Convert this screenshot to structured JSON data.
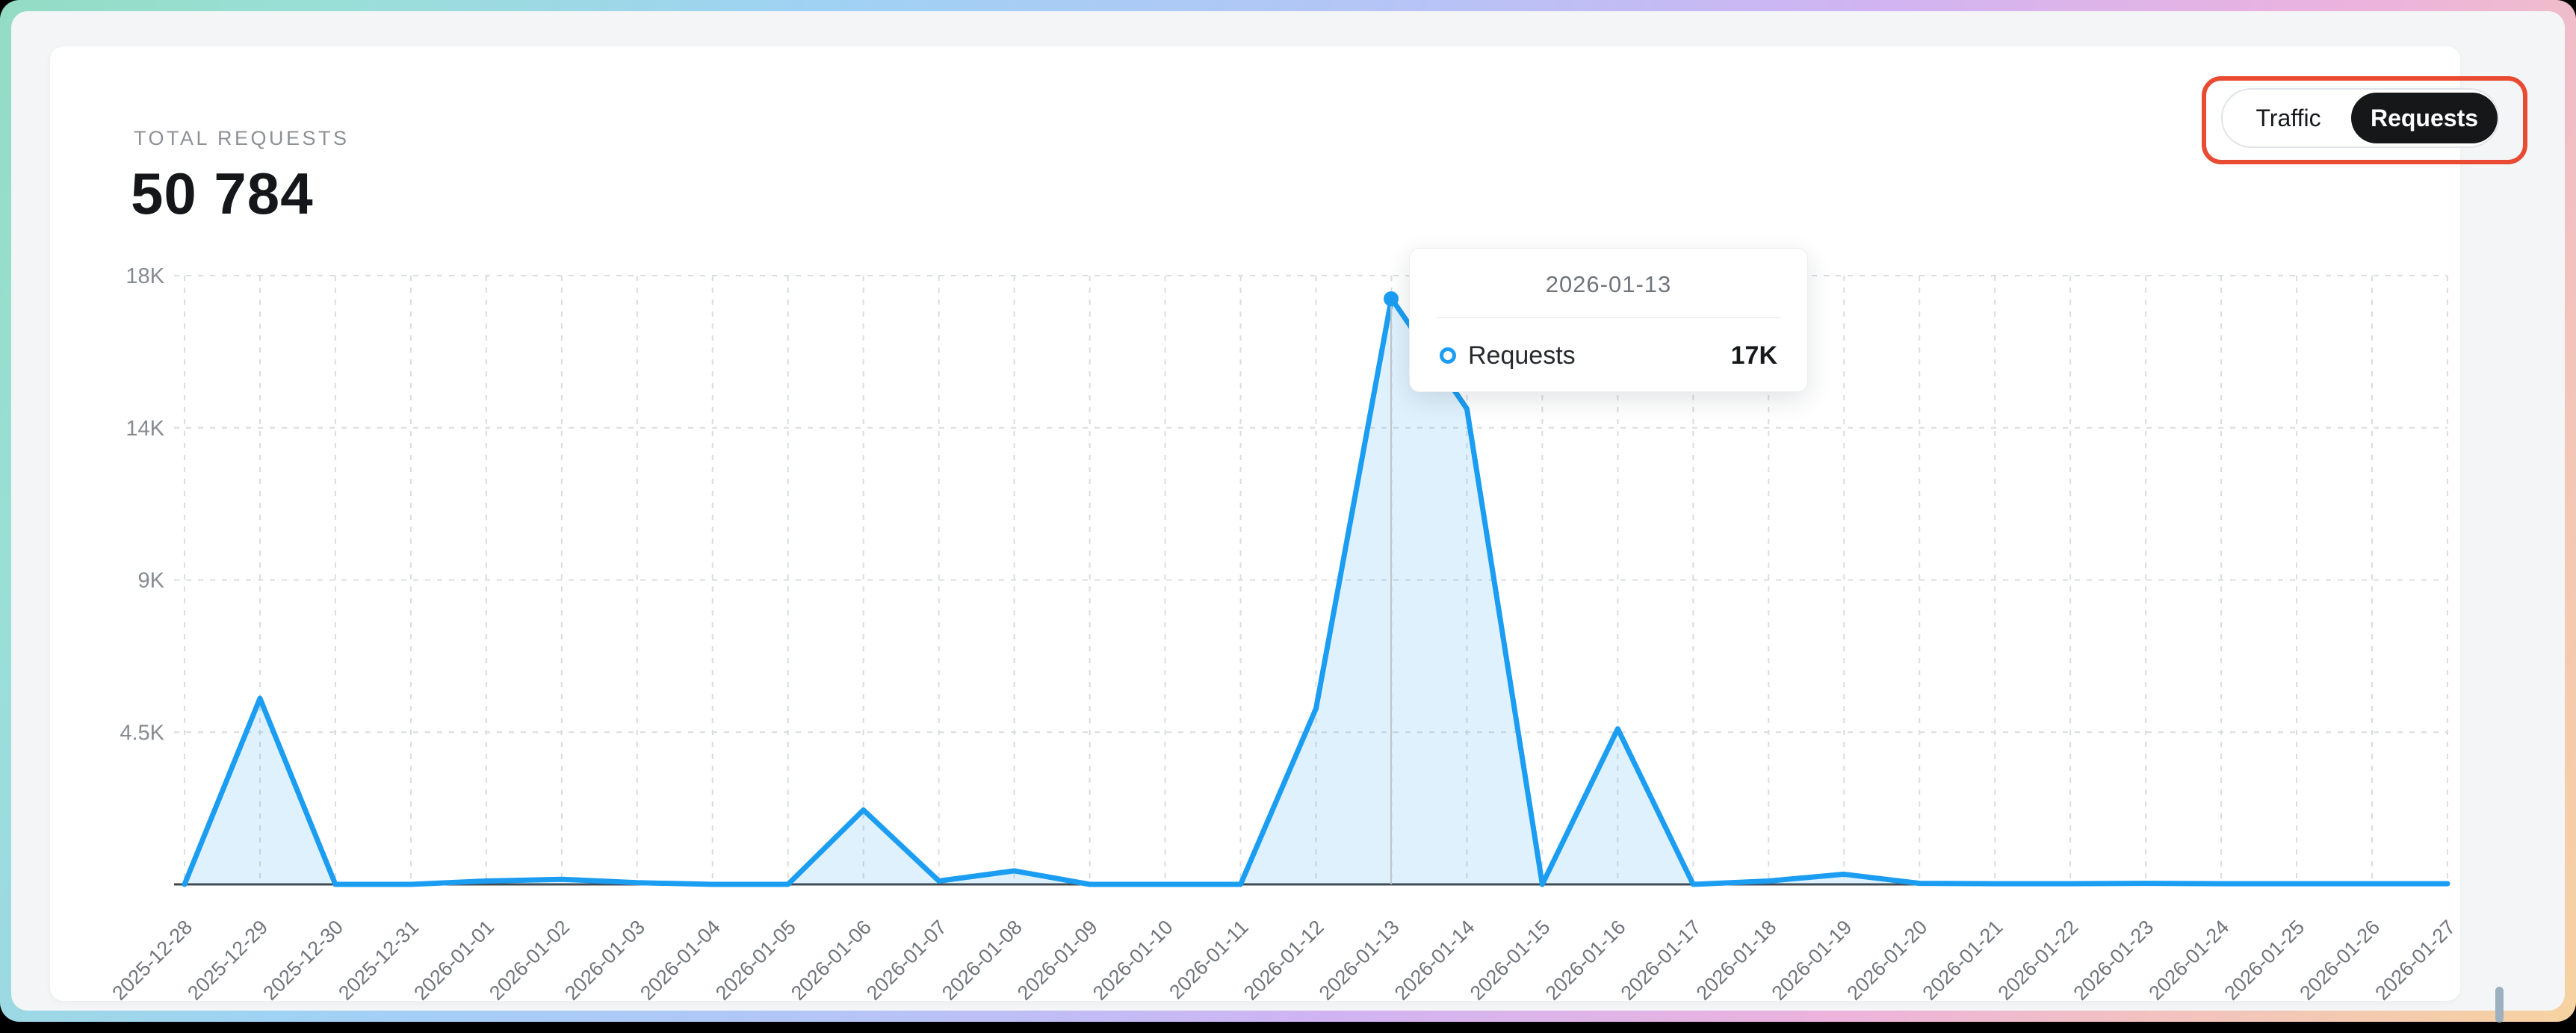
{
  "header": {
    "label": "TOTAL REQUESTS",
    "total": "50 784"
  },
  "toggle": {
    "options": [
      "Traffic",
      "Requests"
    ],
    "selected": "Requests",
    "highlight_color": "#e84a32",
    "selected_bg": "#161719"
  },
  "tooltip": {
    "date": "2026-01-13",
    "series": "Requests",
    "value": "17K",
    "marker_color": "#1b9df2"
  },
  "scrollbar": {
    "color": "#9db0c0"
  },
  "chart_data": {
    "type": "area",
    "title": "Total requests per day",
    "x": [
      "2025-12-28",
      "2025-12-29",
      "2025-12-30",
      "2025-12-31",
      "2026-01-01",
      "2026-01-02",
      "2026-01-03",
      "2026-01-04",
      "2026-01-05",
      "2026-01-06",
      "2026-01-07",
      "2026-01-08",
      "2026-01-09",
      "2026-01-10",
      "2026-01-11",
      "2026-01-12",
      "2026-01-13",
      "2026-01-14",
      "2026-01-15",
      "2026-01-16",
      "2026-01-17",
      "2026-01-18",
      "2026-01-19",
      "2026-01-20",
      "2026-01-21",
      "2026-01-22",
      "2026-01-23",
      "2026-01-24",
      "2026-01-25",
      "2026-01-26",
      "2026-01-27"
    ],
    "series": [
      {
        "name": "Requests",
        "values": [
          0,
          5500,
          0,
          0,
          100,
          150,
          50,
          0,
          0,
          2200,
          100,
          400,
          0,
          0,
          0,
          5200,
          17400,
          14500,
          0,
          4600,
          0,
          100,
          300,
          30,
          20,
          20,
          30,
          20,
          20,
          20,
          20
        ]
      }
    ],
    "total": 50784,
    "y_ticks": [
      {
        "label": "",
        "value": 0
      },
      {
        "label": "4.5K",
        "value": 4500
      },
      {
        "label": "9K",
        "value": 9000
      },
      {
        "label": "14K",
        "value": 14000
      },
      {
        "label": "18K",
        "value": 18000
      }
    ],
    "ylim": [
      0,
      18000
    ],
    "grid": "dashed",
    "legend_position": "none",
    "line_color": "#1b9df2",
    "fill_color": "rgba(27,157,242,0.14)",
    "axis_line_color": "#42474d",
    "grid_color": "#d9dce0",
    "tick_color": "#868b92",
    "highlight": {
      "x": "2026-01-13",
      "value": 17400
    }
  }
}
